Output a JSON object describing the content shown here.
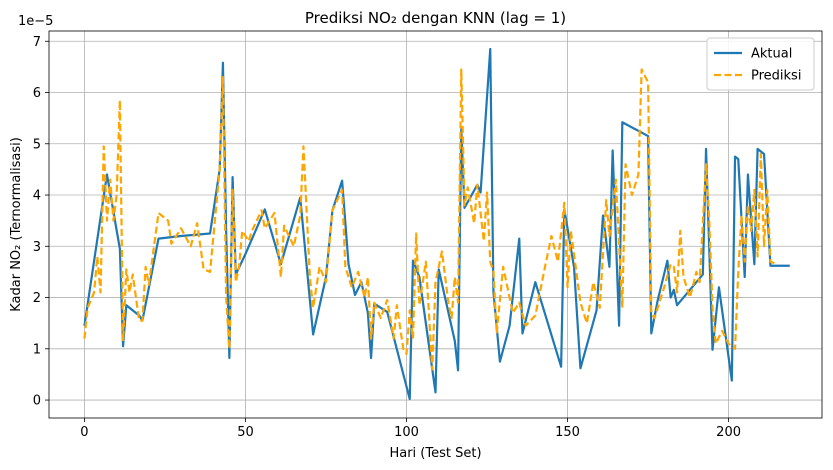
{
  "chart_data": {
    "type": "line",
    "title": "Prediksi NO₂ dengan KNN (lag = 1)",
    "xlabel": "Hari (Test Set)",
    "ylabel": "Kadar NO₂ (Ternormalisasi)",
    "offset_text": "1e−5",
    "xlim": [
      -11,
      229
    ],
    "ylim": [
      -0.35,
      7.2
    ],
    "x_ticks": [
      0,
      50,
      100,
      150,
      200
    ],
    "y_ticks": [
      0,
      1,
      2,
      3,
      4,
      5,
      6,
      7
    ],
    "grid": true,
    "legend_position": "top-right",
    "series": [
      {
        "name": "Aktual",
        "color": "#1f77b4",
        "style": "solid",
        "points": [
          [
            0,
            1.45
          ],
          [
            7,
            4.4
          ],
          [
            11,
            2.95
          ],
          [
            12,
            1.05
          ],
          [
            13,
            1.85
          ],
          [
            17,
            1.65
          ],
          [
            18,
            1.55
          ],
          [
            23,
            3.15
          ],
          [
            30,
            3.2
          ],
          [
            39,
            3.25
          ],
          [
            42,
            4.5
          ],
          [
            43,
            6.58
          ],
          [
            44,
            3.3
          ],
          [
            45,
            0.82
          ],
          [
            46,
            4.35
          ],
          [
            47,
            2.45
          ],
          [
            50,
            2.85
          ],
          [
            56,
            3.72
          ],
          [
            61,
            2.65
          ],
          [
            67,
            3.95
          ],
          [
            71,
            1.28
          ],
          [
            75,
            2.4
          ],
          [
            77,
            3.7
          ],
          [
            80,
            4.28
          ],
          [
            82,
            2.65
          ],
          [
            84,
            2.05
          ],
          [
            86,
            2.3
          ],
          [
            88,
            1.7
          ],
          [
            89,
            0.82
          ],
          [
            90,
            1.88
          ],
          [
            94,
            1.72
          ],
          [
            101,
            0.02
          ],
          [
            102,
            2.72
          ],
          [
            104,
            2.4
          ],
          [
            109,
            0.15
          ],
          [
            110,
            2.55
          ],
          [
            115,
            1.15
          ],
          [
            116,
            0.58
          ],
          [
            117,
            5.28
          ],
          [
            118,
            3.75
          ],
          [
            122,
            4.2
          ],
          [
            123,
            4.05
          ],
          [
            126,
            6.85
          ],
          [
            127,
            2.1
          ],
          [
            129,
            0.75
          ],
          [
            132,
            1.45
          ],
          [
            135,
            3.15
          ],
          [
            136,
            1.3
          ],
          [
            140,
            2.3
          ],
          [
            148,
            0.65
          ],
          [
            149,
            3.72
          ],
          [
            152,
            2.6
          ],
          [
            154,
            0.62
          ],
          [
            159,
            1.75
          ],
          [
            161,
            3.6
          ],
          [
            163,
            2.6
          ],
          [
            164,
            4.87
          ],
          [
            166,
            1.45
          ],
          [
            167,
            5.42
          ],
          [
            175,
            5.15
          ],
          [
            176,
            1.3
          ],
          [
            178,
            1.95
          ],
          [
            181,
            2.72
          ],
          [
            182,
            2.0
          ],
          [
            183,
            2.15
          ],
          [
            184,
            1.85
          ],
          [
            192,
            2.45
          ],
          [
            193,
            4.9
          ],
          [
            195,
            0.98
          ],
          [
            197,
            2.2
          ],
          [
            201,
            0.38
          ],
          [
            202,
            4.75
          ],
          [
            203,
            4.7
          ],
          [
            205,
            2.4
          ],
          [
            206,
            4.4
          ],
          [
            208,
            2.65
          ],
          [
            209,
            4.9
          ],
          [
            211,
            4.8
          ],
          [
            213,
            2.62
          ],
          [
            219,
            2.62
          ]
        ]
      },
      {
        "name": "Prediksi",
        "color": "#ffa500",
        "style": "dashed",
        "points": [
          [
            0,
            1.2
          ],
          [
            1,
            1.8
          ],
          [
            3,
            2.1
          ],
          [
            4,
            2.8
          ],
          [
            5,
            2.1
          ],
          [
            6,
            4.95
          ],
          [
            7,
            3.5
          ],
          [
            8,
            4.3
          ],
          [
            9,
            3.5
          ],
          [
            10,
            4.0
          ],
          [
            11,
            5.85
          ],
          [
            12,
            1.15
          ],
          [
            13,
            2.55
          ],
          [
            14,
            2.1
          ],
          [
            15,
            2.45
          ],
          [
            17,
            1.55
          ],
          [
            18,
            1.55
          ],
          [
            19,
            2.6
          ],
          [
            20,
            2.25
          ],
          [
            23,
            3.65
          ],
          [
            26,
            3.5
          ],
          [
            27,
            3.05
          ],
          [
            30,
            3.35
          ],
          [
            33,
            3.0
          ],
          [
            35,
            3.45
          ],
          [
            37,
            2.55
          ],
          [
            39,
            2.5
          ],
          [
            42,
            4.5
          ],
          [
            43,
            6.3
          ],
          [
            44,
            2.0
          ],
          [
            45,
            1.0
          ],
          [
            46,
            4.1
          ],
          [
            47,
            2.3
          ],
          [
            48,
            2.6
          ],
          [
            49,
            3.3
          ],
          [
            51,
            3.1
          ],
          [
            52,
            3.3
          ],
          [
            55,
            3.7
          ],
          [
            56,
            3.35
          ],
          [
            59,
            3.65
          ],
          [
            61,
            2.4
          ],
          [
            62,
            3.4
          ],
          [
            65,
            3.0
          ],
          [
            67,
            3.6
          ],
          [
            68,
            4.95
          ],
          [
            70,
            2.4
          ],
          [
            71,
            1.8
          ],
          [
            73,
            2.6
          ],
          [
            75,
            2.3
          ],
          [
            77,
            3.7
          ],
          [
            80,
            4.1
          ],
          [
            81,
            2.6
          ],
          [
            83,
            2.2
          ],
          [
            85,
            2.5
          ],
          [
            87,
            2.0
          ],
          [
            88,
            2.4
          ],
          [
            89,
            1.2
          ],
          [
            90,
            1.9
          ],
          [
            92,
            1.6
          ],
          [
            94,
            1.95
          ],
          [
            96,
            1.2
          ],
          [
            97,
            1.85
          ],
          [
            99,
            1.0
          ],
          [
            100,
            0.9
          ],
          [
            101,
            1.75
          ],
          [
            102,
            1.2
          ],
          [
            103,
            3.25
          ],
          [
            104,
            1.85
          ],
          [
            106,
            2.7
          ],
          [
            108,
            0.6
          ],
          [
            109,
            2.3
          ],
          [
            111,
            2.9
          ],
          [
            113,
            1.9
          ],
          [
            114,
            1.6
          ],
          [
            115,
            2.4
          ],
          [
            116,
            1.9
          ],
          [
            117,
            6.45
          ],
          [
            118,
            3.8
          ],
          [
            119,
            4.15
          ],
          [
            121,
            3.45
          ],
          [
            122,
            4.2
          ],
          [
            124,
            3.1
          ],
          [
            125,
            4.05
          ],
          [
            126,
            2.7
          ],
          [
            127,
            2.5
          ],
          [
            128,
            1.3
          ],
          [
            130,
            2.6
          ],
          [
            133,
            1.7
          ],
          [
            135,
            1.9
          ],
          [
            137,
            1.45
          ],
          [
            140,
            1.65
          ],
          [
            143,
            2.6
          ],
          [
            145,
            3.2
          ],
          [
            147,
            2.7
          ],
          [
            149,
            3.85
          ],
          [
            150,
            2.2
          ],
          [
            151,
            3.3
          ],
          [
            152,
            2.85
          ],
          [
            154,
            1.9
          ],
          [
            156,
            1.5
          ],
          [
            158,
            2.3
          ],
          [
            160,
            1.8
          ],
          [
            162,
            3.9
          ],
          [
            163,
            3.2
          ],
          [
            165,
            4.3
          ],
          [
            167,
            1.8
          ],
          [
            168,
            4.6
          ],
          [
            170,
            4.0
          ],
          [
            172,
            4.4
          ],
          [
            173,
            6.45
          ],
          [
            175,
            6.2
          ],
          [
            176,
            1.7
          ],
          [
            177,
            1.6
          ],
          [
            180,
            2.2
          ],
          [
            182,
            2.65
          ],
          [
            183,
            2.6
          ],
          [
            184,
            2.1
          ],
          [
            185,
            3.3
          ],
          [
            186,
            2.4
          ],
          [
            188,
            2.0
          ],
          [
            190,
            2.5
          ],
          [
            191,
            2.3
          ],
          [
            193,
            4.6
          ],
          [
            194,
            3.5
          ],
          [
            195,
            1.8
          ],
          [
            196,
            1.1
          ],
          [
            198,
            1.35
          ],
          [
            200,
            1.1
          ],
          [
            202,
            1.0
          ],
          [
            203,
            2.5
          ],
          [
            204,
            3.6
          ],
          [
            205,
            2.7
          ],
          [
            206,
            3.8
          ],
          [
            207,
            3.3
          ],
          [
            208,
            4.1
          ],
          [
            209,
            2.8
          ],
          [
            210,
            4.8
          ],
          [
            211,
            3.0
          ],
          [
            212,
            4.1
          ],
          [
            213,
            2.7
          ],
          [
            215,
            2.65
          ]
        ]
      }
    ]
  }
}
